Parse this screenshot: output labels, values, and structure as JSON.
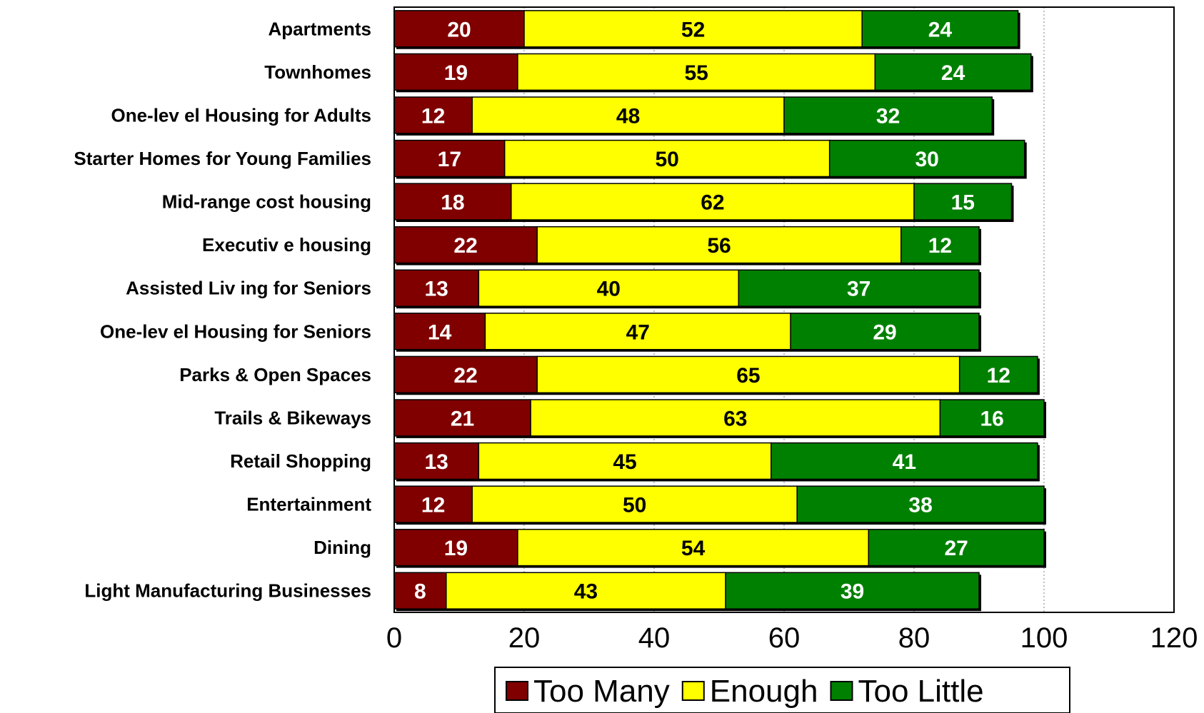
{
  "chart_data": {
    "type": "bar",
    "orientation": "horizontal",
    "stacked": true,
    "title": "",
    "xlabel": "",
    "ylabel": "",
    "xlim": [
      0,
      120
    ],
    "x_ticks": [
      0,
      20,
      40,
      60,
      80,
      100,
      120
    ],
    "grid": true,
    "legend_position": "bottom",
    "categories": [
      "Apartments",
      "Townhomes",
      "One-lev el Housing for Adults",
      "Starter Homes for Young Families",
      "Mid-range cost housing",
      "Executiv e housing",
      "Assisted Liv ing for Seniors",
      "One-lev el Housing for Seniors",
      "Parks & Open Spaces",
      "Trails & Bikeways",
      "Retail Shopping",
      "Entertainment",
      "Dining",
      "Light Manufacturing Businesses"
    ],
    "series": [
      {
        "name": "Too Many",
        "color": "#800000",
        "label_color": "#ffffff",
        "values": [
          20,
          19,
          12,
          17,
          18,
          22,
          13,
          14,
          22,
          21,
          13,
          12,
          19,
          8
        ]
      },
      {
        "name": "Enough",
        "color": "#ffff00",
        "label_color": "#000000",
        "values": [
          52,
          55,
          48,
          50,
          62,
          56,
          40,
          47,
          65,
          63,
          45,
          50,
          54,
          43
        ]
      },
      {
        "name": "Too Little",
        "color": "#008000",
        "label_color": "#ffffff",
        "values": [
          24,
          24,
          32,
          30,
          15,
          12,
          37,
          29,
          12,
          16,
          41,
          38,
          27,
          39
        ]
      }
    ]
  }
}
